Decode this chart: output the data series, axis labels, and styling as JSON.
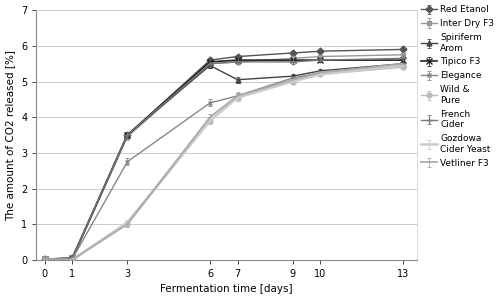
{
  "x": [
    0,
    1,
    3,
    6,
    7,
    9,
    10,
    13
  ],
  "series": [
    {
      "label": "Red Etanol",
      "color": "#555555",
      "marker": "D",
      "markersize": 3.5,
      "linewidth": 1.0,
      "y": [
        0.02,
        0.05,
        3.5,
        5.6,
        5.7,
        5.8,
        5.85,
        5.9
      ],
      "yerr": [
        0.02,
        0.02,
        0.08,
        0.06,
        0.05,
        0.05,
        0.04,
        0.04
      ]
    },
    {
      "label": "Inter Dry F3",
      "color": "#999999",
      "marker": "s",
      "markersize": 3.5,
      "linewidth": 1.0,
      "y": [
        0.02,
        0.02,
        3.45,
        5.5,
        5.55,
        5.65,
        5.7,
        5.75
      ],
      "yerr": [
        0.02,
        0.02,
        0.08,
        0.06,
        0.05,
        0.05,
        0.04,
        0.04
      ]
    },
    {
      "label": "Spiriferm\nArom",
      "color": "#444444",
      "marker": "^",
      "markersize": 3.5,
      "linewidth": 1.0,
      "y": [
        0.02,
        0.02,
        3.5,
        5.45,
        5.05,
        5.15,
        5.3,
        5.5
      ],
      "yerr": [
        0.02,
        0.02,
        0.08,
        0.06,
        0.08,
        0.07,
        0.04,
        0.04
      ]
    },
    {
      "label": "Tipico F3",
      "color": "#222222",
      "marker": "x",
      "markersize": 4.5,
      "linewidth": 1.2,
      "y": [
        0.02,
        0.05,
        3.5,
        5.55,
        5.6,
        5.6,
        5.6,
        5.6
      ],
      "yerr": [
        0.02,
        0.02,
        0.08,
        0.06,
        0.05,
        0.05,
        0.04,
        0.04
      ]
    },
    {
      "label": "Elegance",
      "color": "#888888",
      "marker": "x",
      "markersize": 3.5,
      "linewidth": 1.0,
      "y": [
        0.02,
        0.02,
        2.75,
        4.4,
        4.6,
        5.1,
        5.25,
        5.45
      ],
      "yerr": [
        0.02,
        0.02,
        0.1,
        0.1,
        0.08,
        0.08,
        0.04,
        0.04
      ]
    },
    {
      "label": "Wild &\nPure",
      "color": "#bbbbbb",
      "marker": "o",
      "markersize": 3.5,
      "linewidth": 1.0,
      "y": [
        0.02,
        0.02,
        1.0,
        3.9,
        4.55,
        5.0,
        5.2,
        5.4
      ],
      "yerr": [
        0.02,
        0.02,
        0.08,
        0.1,
        0.1,
        0.08,
        0.04,
        0.04
      ]
    },
    {
      "label": "French\nCider",
      "color": "#777777",
      "marker": "+",
      "markersize": 4.5,
      "linewidth": 1.0,
      "y": [
        0.02,
        0.05,
        3.5,
        5.5,
        5.55,
        5.55,
        5.6,
        5.65
      ],
      "yerr": [
        0.02,
        0.02,
        0.08,
        0.06,
        0.05,
        0.05,
        0.04,
        0.04
      ]
    },
    {
      "label": "Gozdowa\nCider Yeast",
      "color": "#cccccc",
      "marker": "None",
      "markersize": 0,
      "linewidth": 1.8,
      "y": [
        0.0,
        0.0,
        1.05,
        3.9,
        4.55,
        5.0,
        5.2,
        5.45
      ],
      "yerr": [
        0.01,
        0.01,
        0.08,
        0.1,
        0.1,
        0.08,
        0.04,
        0.04
      ]
    },
    {
      "label": "Vetliner F3",
      "color": "#aaaaaa",
      "marker": "None",
      "markersize": 0,
      "linewidth": 1.3,
      "y": [
        0.0,
        0.0,
        1.0,
        4.0,
        4.6,
        5.05,
        5.25,
        5.5
      ],
      "yerr": [
        0.01,
        0.01,
        0.08,
        0.1,
        0.1,
        0.08,
        0.04,
        0.04
      ]
    }
  ],
  "xlabel": "Fermentation time [days]",
  "ylabel": "The amount of CO2 released [%]",
  "ylim": [
    0,
    7
  ],
  "xlim": [
    -0.3,
    13.5
  ],
  "yticks": [
    0,
    1,
    2,
    3,
    4,
    5,
    6,
    7
  ],
  "xticks": [
    0,
    1,
    3,
    6,
    7,
    9,
    10,
    13
  ],
  "grid_color": "#cccccc",
  "background_color": "#ffffff",
  "axis_fontsize": 7.5,
  "tick_fontsize": 7,
  "legend_fontsize": 6.5,
  "figsize": [
    5.0,
    3.0
  ],
  "dpi": 100
}
